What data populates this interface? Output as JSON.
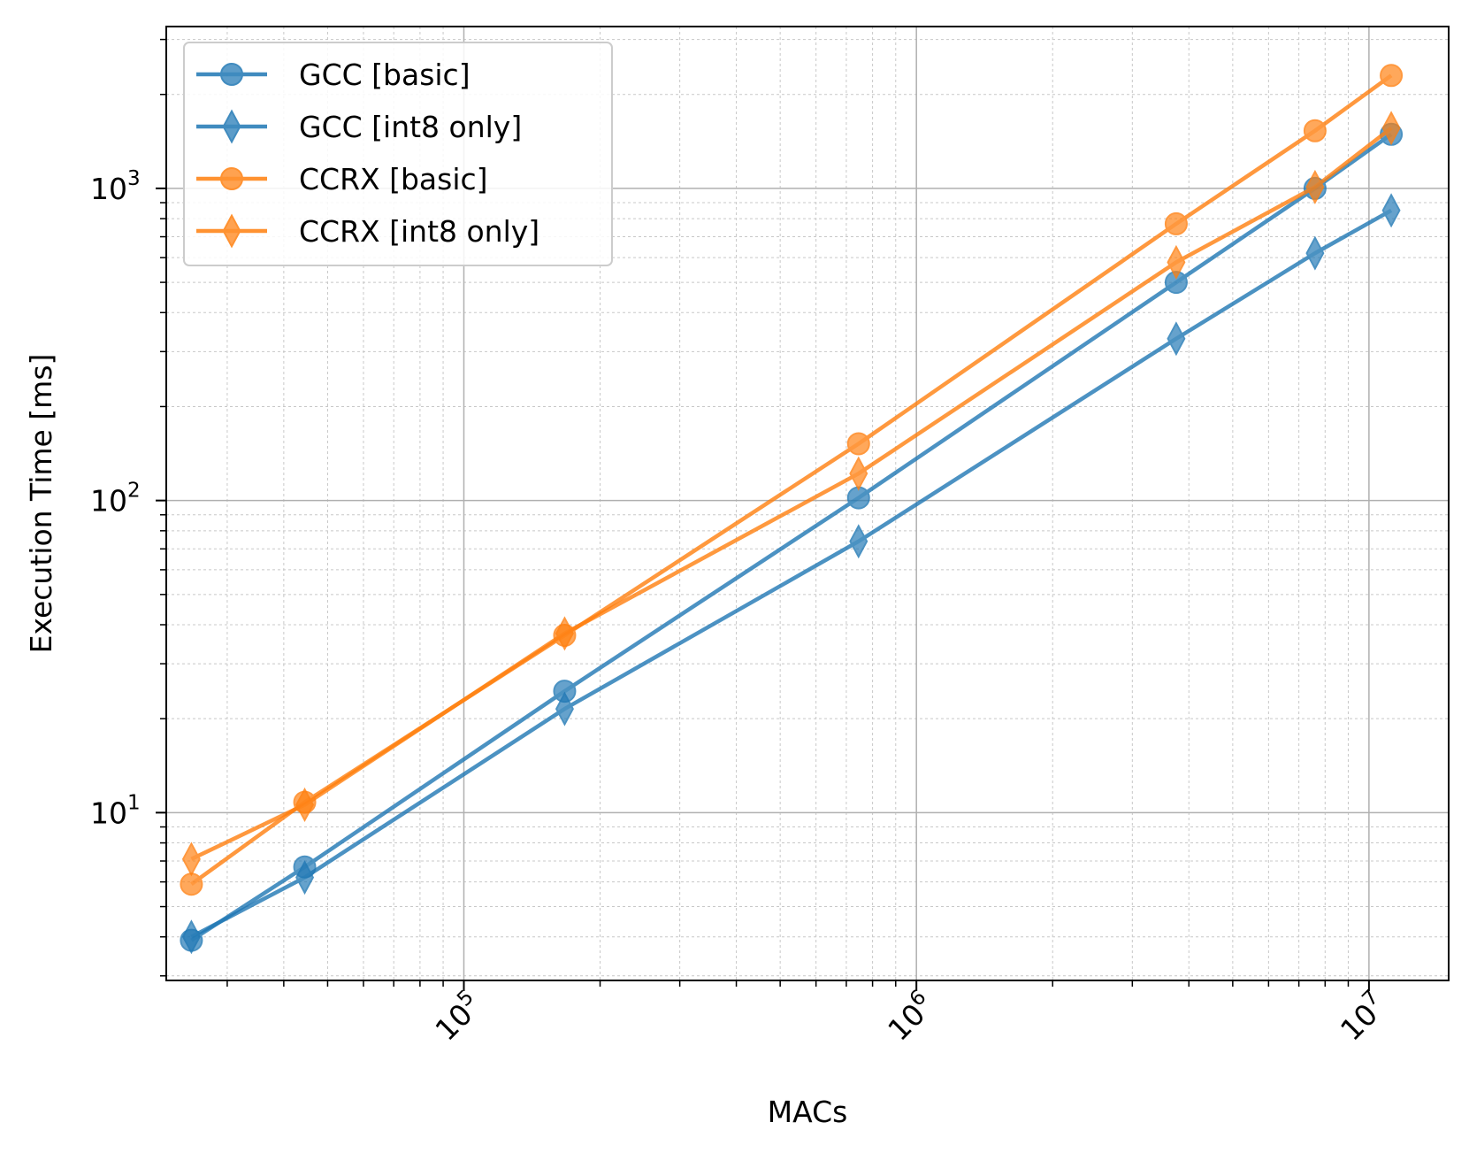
{
  "chart_data": {
    "type": "line",
    "title": "",
    "xlabel": "MACs",
    "ylabel": "Execution Time [ms]",
    "xscale": "log",
    "yscale": "log",
    "xlim": [
      22000,
      15000000
    ],
    "ylim": [
      2.9,
      3300
    ],
    "x_major_ticks": [
      {
        "value": 100000,
        "base": "10",
        "exp": "5"
      },
      {
        "value": 1000000,
        "base": "10",
        "exp": "6"
      },
      {
        "value": 10000000,
        "base": "10",
        "exp": "7"
      }
    ],
    "y_major_ticks": [
      {
        "value": 10,
        "base": "10",
        "exp": "1"
      },
      {
        "value": 100,
        "base": "10",
        "exp": "2"
      },
      {
        "value": 1000,
        "base": "10",
        "exp": "3"
      }
    ],
    "grid": true,
    "legend_position": "top-left",
    "series": [
      {
        "name": "GCC [basic]",
        "color": "#1f77b4",
        "marker": "circle",
        "x": [
          25000,
          44500,
          167000,
          745000,
          3750000,
          7600000,
          11200000
        ],
        "y": [
          3.9,
          6.7,
          24.5,
          102,
          500,
          1000,
          1490
        ]
      },
      {
        "name": "GCC [int8 only]",
        "color": "#1f77b4",
        "marker": "diamond",
        "x": [
          25000,
          44500,
          167000,
          745000,
          3750000,
          7600000,
          11200000
        ],
        "y": [
          4.0,
          6.2,
          21.5,
          74,
          330,
          620,
          850
        ]
      },
      {
        "name": "CCRX [basic]",
        "color": "#ff7f0e",
        "marker": "circle",
        "x": [
          25000,
          44500,
          167000,
          745000,
          3750000,
          7600000,
          11200000
        ],
        "y": [
          5.9,
          10.8,
          37,
          152,
          770,
          1530,
          2300
        ]
      },
      {
        "name": "CCRX [int8 only]",
        "color": "#ff7f0e",
        "marker": "diamond",
        "x": [
          25000,
          44500,
          167000,
          745000,
          3750000,
          7600000,
          11200000
        ],
        "y": [
          7.1,
          10.6,
          37.5,
          122,
          580,
          1010,
          1560
        ]
      }
    ]
  }
}
